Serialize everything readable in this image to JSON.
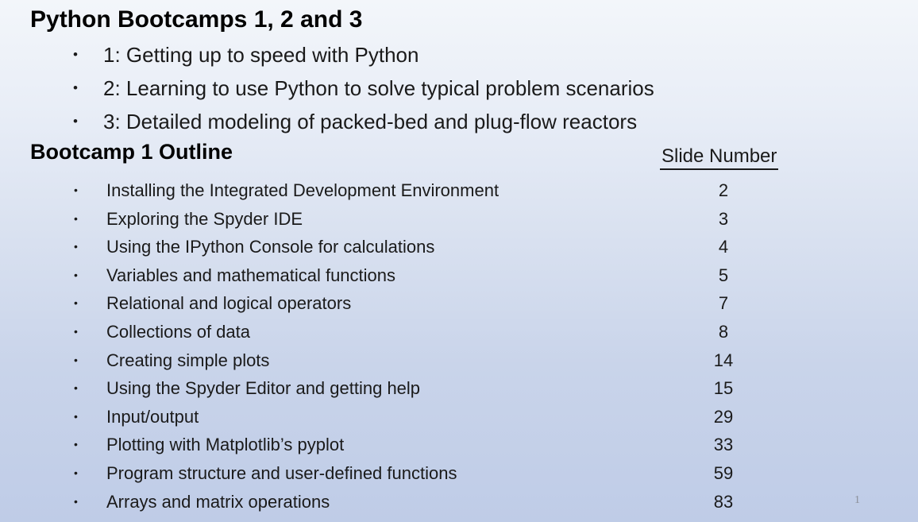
{
  "slide": {
    "title": "Python Bootcamps 1, 2 and 3",
    "bullet_glyph": "•",
    "intro_bullets": [
      "1: Getting up to speed with Python",
      "2: Learning to use Python to solve typical problem scenarios",
      "3: Detailed modeling of packed-bed and plug-flow reactors"
    ],
    "outline_heading": "Bootcamp 1 Outline",
    "column_heading": "Slide Number",
    "outline": [
      {
        "topic": "Installing the Integrated Development Environment",
        "slide_number": "2"
      },
      {
        "topic": "Exploring the Spyder IDE",
        "slide_number": "3"
      },
      {
        "topic": "Using the IPython Console for calculations",
        "slide_number": "4"
      },
      {
        "topic": "Variables and mathematical functions",
        "slide_number": "5"
      },
      {
        "topic": "Relational and logical operators",
        "slide_number": "7"
      },
      {
        "topic": "Collections of data",
        "slide_number": "8"
      },
      {
        "topic": "Creating simple plots",
        "slide_number": "14"
      },
      {
        "topic": "Using the Spyder Editor and getting help",
        "slide_number": "15"
      },
      {
        "topic": "Input/output",
        "slide_number": "29"
      },
      {
        "topic": "Plotting with Matplotlib’s pyplot",
        "slide_number": "33"
      },
      {
        "topic": "Program structure and user-defined functions",
        "slide_number": "59"
      },
      {
        "topic": "Arrays and matrix operations",
        "slide_number": "83"
      }
    ],
    "page_number": "1",
    "colors": {
      "background_top": "#f3f6fa",
      "background_middle": "#d9e1f0",
      "background_bottom": "#bfcce7",
      "text": "#1a1a1a",
      "heading_text": "#000000",
      "page_number": "#8a8f98"
    }
  }
}
